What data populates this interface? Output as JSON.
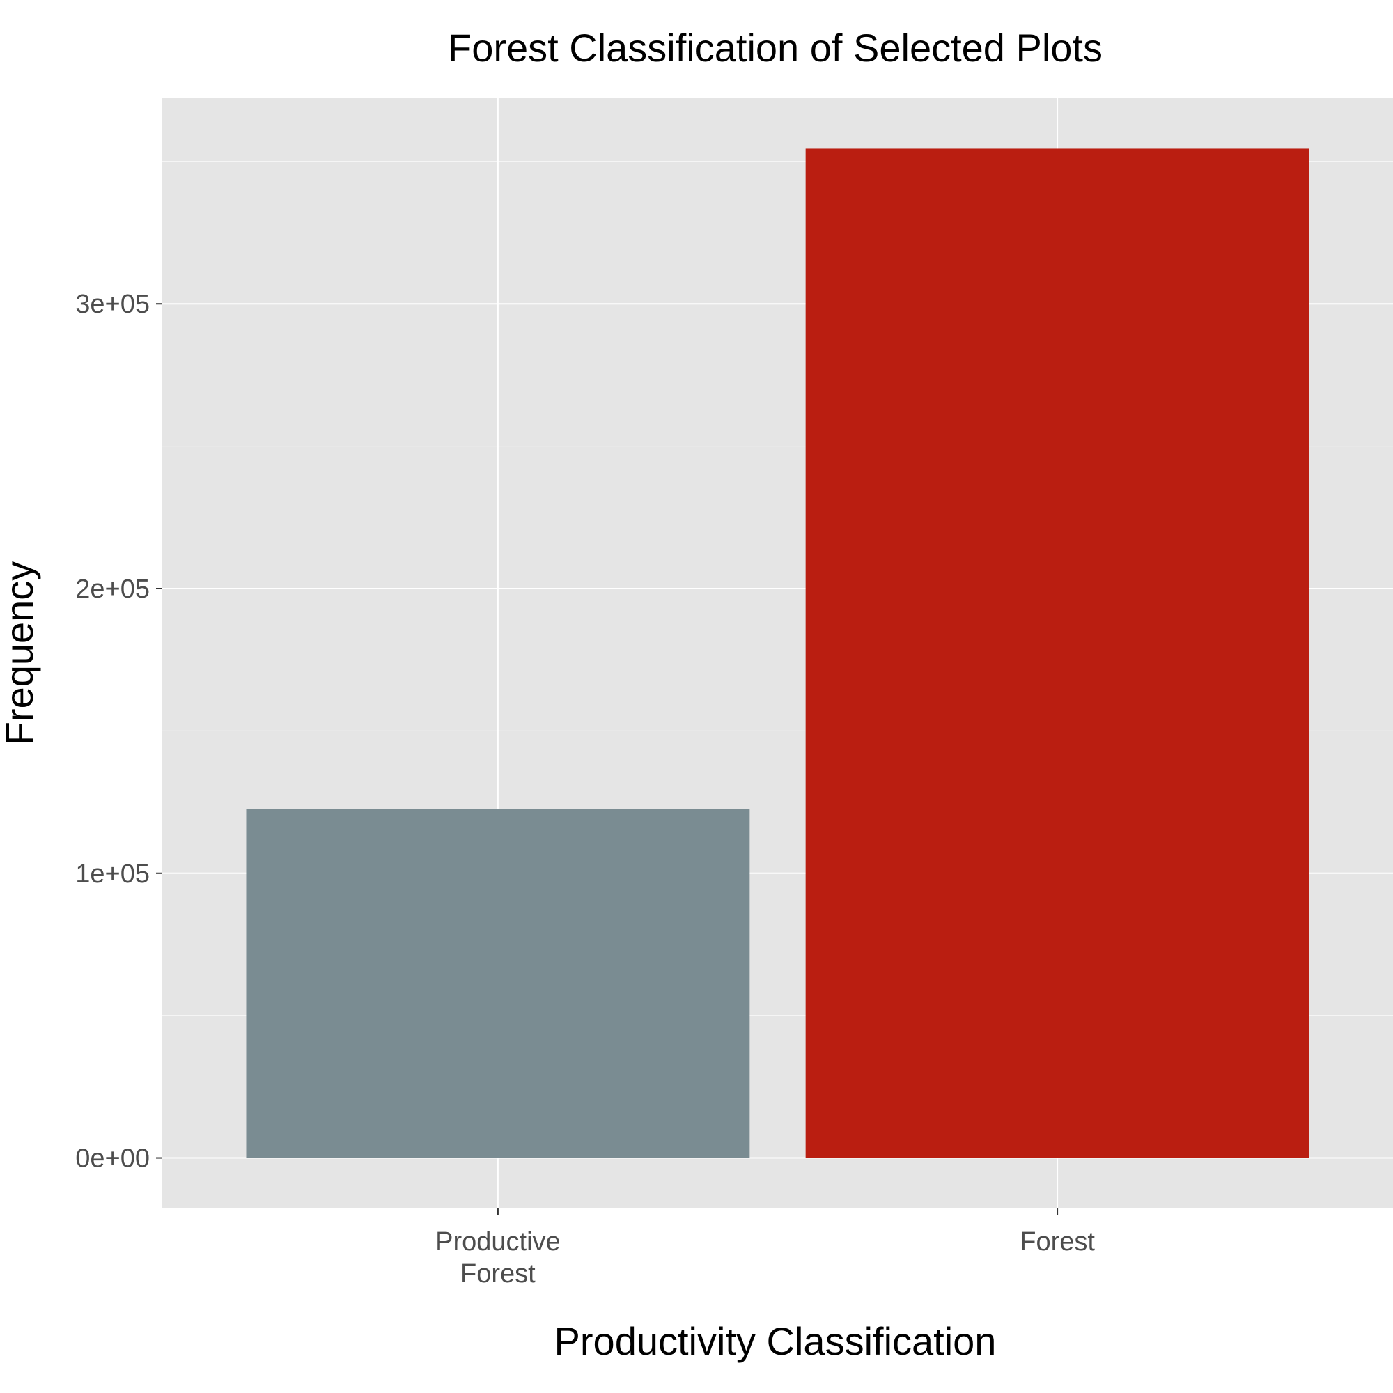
{
  "chart_data": {
    "type": "bar",
    "title": "Forest Classification of Selected Plots",
    "xlabel": "Productivity Classification",
    "ylabel": "Frequency",
    "categories": [
      [
        "Productive",
        "Forest"
      ],
      [
        "Forest"
      ]
    ],
    "values": [
      122500,
      354500
    ],
    "bar_colors": [
      "#7a8c92",
      "#ba1e11"
    ],
    "ylim": [
      -17725,
      372225
    ],
    "y_ticks": [
      0,
      100000,
      200000,
      300000
    ],
    "y_tick_labels": [
      "0e+00",
      "1e+05",
      "2e+05",
      "3e+05"
    ],
    "grid": true,
    "panel_background": "#e5e5e5",
    "grid_color": "#ffffff",
    "legend": "none"
  }
}
